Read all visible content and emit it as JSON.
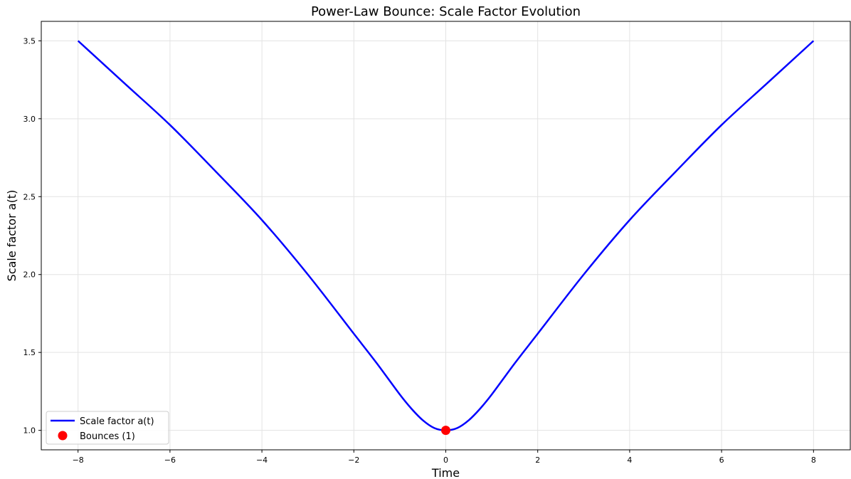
{
  "chart_data": {
    "type": "line",
    "title": "Power-Law Bounce: Scale Factor Evolution",
    "xlabel": "Time",
    "ylabel": "Scale factor a(t)",
    "xlim": [
      -8.8,
      8.8
    ],
    "ylim": [
      0.875,
      3.625
    ],
    "xticks": [
      -8,
      -6,
      -4,
      -2,
      0,
      2,
      4,
      6,
      8
    ],
    "xtick_labels": [
      "−8",
      "−6",
      "−4",
      "−2",
      "0",
      "2",
      "4",
      "6",
      "8"
    ],
    "yticks": [
      1.0,
      1.5,
      2.0,
      2.5,
      3.0,
      3.5
    ],
    "ytick_labels": [
      "1.0",
      "1.5",
      "2.0",
      "2.5",
      "3.0",
      "3.5"
    ],
    "grid": true,
    "legend": {
      "placement": "lower-left"
    },
    "series": [
      {
        "name": "Scale factor a(t)",
        "kind": "line",
        "color": "#0000ff",
        "x": [
          -8,
          -7,
          -6,
          -5,
          -4,
          -3,
          -2,
          -1.5,
          -1,
          -0.75,
          -0.5,
          -0.25,
          0,
          0.25,
          0.5,
          0.75,
          1,
          1.5,
          2,
          3,
          4,
          5,
          6,
          7,
          8
        ],
        "y": [
          3.5,
          3.23,
          2.96,
          2.66,
          2.35,
          2.0,
          1.62,
          1.43,
          1.23,
          1.14,
          1.065,
          1.015,
          1.0,
          1.015,
          1.065,
          1.14,
          1.23,
          1.43,
          1.62,
          2.0,
          2.35,
          2.66,
          2.96,
          3.23,
          3.5
        ]
      },
      {
        "name": "Bounces (1)",
        "kind": "scatter",
        "color": "#ff0000",
        "x": [
          0
        ],
        "y": [
          1.0
        ]
      }
    ]
  }
}
